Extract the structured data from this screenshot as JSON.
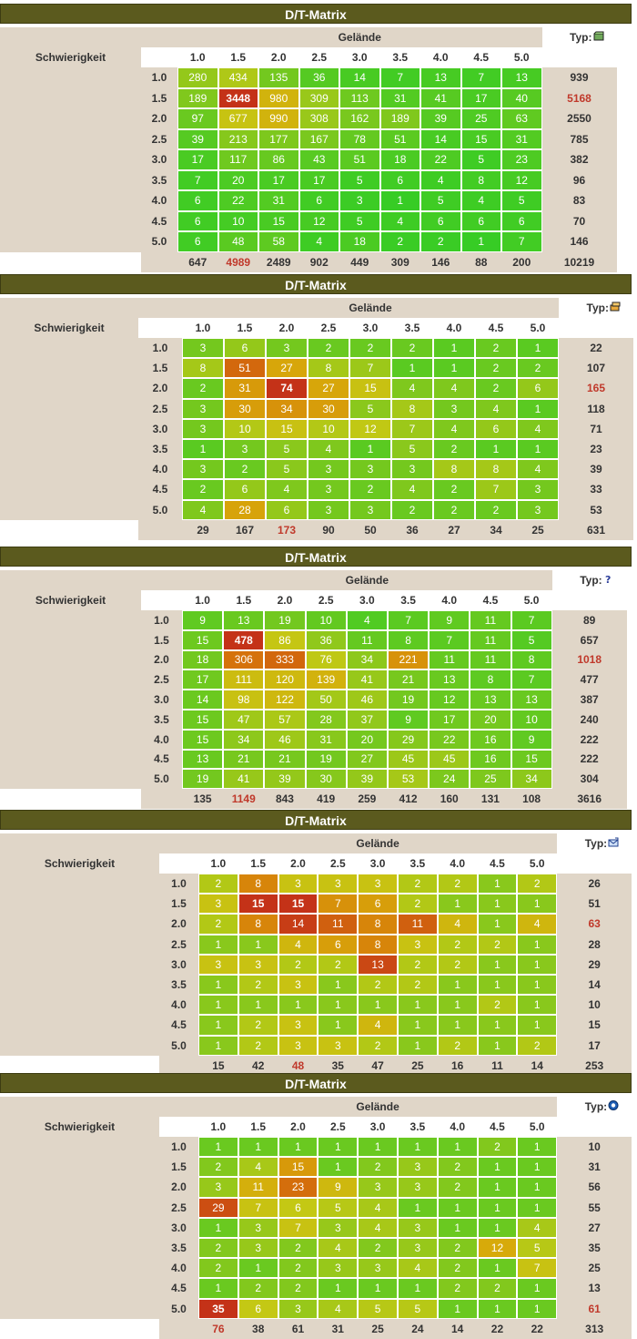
{
  "labels": {
    "title": "D/T-Matrix",
    "terrain": "Gelände",
    "difficulty": "Schwierigkeit",
    "type": "Typ:"
  },
  "levels": [
    "1.0",
    "1.5",
    "2.0",
    "2.5",
    "3.0",
    "3.5",
    "4.0",
    "4.5",
    "5.0"
  ],
  "matrices": [
    {
      "icon": "traditional-cache-icon",
      "rows": [
        [
          280,
          434,
          135,
          36,
          14,
          7,
          13,
          7,
          13
        ],
        [
          189,
          3448,
          980,
          309,
          113,
          31,
          41,
          17,
          40
        ],
        [
          97,
          677,
          990,
          308,
          162,
          189,
          39,
          25,
          63
        ],
        [
          39,
          213,
          177,
          167,
          78,
          51,
          14,
          15,
          31
        ],
        [
          17,
          117,
          86,
          43,
          51,
          18,
          22,
          5,
          23
        ],
        [
          7,
          20,
          17,
          17,
          5,
          6,
          4,
          8,
          12
        ],
        [
          6,
          22,
          31,
          6,
          3,
          1,
          5,
          4,
          5
        ],
        [
          6,
          10,
          15,
          12,
          5,
          4,
          6,
          6,
          6
        ],
        [
          6,
          48,
          58,
          4,
          18,
          2,
          2,
          1,
          7
        ]
      ],
      "row_totals": [
        939,
        5168,
        2550,
        785,
        382,
        96,
        83,
        70,
        146
      ],
      "col_totals": [
        647,
        4989,
        2489,
        902,
        449,
        309,
        146,
        88,
        200
      ],
      "grand_total": 10219
    },
    {
      "icon": "multi-cache-icon",
      "rows": [
        [
          3,
          6,
          3,
          2,
          2,
          2,
          1,
          2,
          1
        ],
        [
          8,
          51,
          27,
          8,
          7,
          1,
          1,
          2,
          2
        ],
        [
          2,
          31,
          74,
          27,
          15,
          4,
          4,
          2,
          6
        ],
        [
          3,
          30,
          34,
          30,
          5,
          8,
          3,
          4,
          1
        ],
        [
          3,
          10,
          15,
          10,
          12,
          7,
          4,
          6,
          4
        ],
        [
          1,
          3,
          5,
          4,
          1,
          5,
          2,
          1,
          1
        ],
        [
          3,
          2,
          5,
          3,
          3,
          3,
          8,
          8,
          4
        ],
        [
          2,
          6,
          4,
          3,
          2,
          4,
          2,
          7,
          3
        ],
        [
          4,
          28,
          6,
          3,
          3,
          2,
          2,
          2,
          3
        ]
      ],
      "row_totals": [
        22,
        107,
        165,
        118,
        71,
        23,
        39,
        33,
        53
      ],
      "col_totals": [
        29,
        167,
        173,
        90,
        50,
        36,
        27,
        34,
        25
      ],
      "grand_total": 631
    },
    {
      "icon": "mystery-cache-icon",
      "rows": [
        [
          9,
          13,
          19,
          10,
          4,
          7,
          9,
          11,
          7
        ],
        [
          15,
          478,
          86,
          36,
          11,
          8,
          7,
          11,
          5
        ],
        [
          18,
          306,
          333,
          76,
          34,
          221,
          11,
          11,
          8
        ],
        [
          17,
          111,
          120,
          139,
          41,
          21,
          13,
          8,
          7
        ],
        [
          14,
          98,
          122,
          50,
          46,
          19,
          12,
          13,
          13
        ],
        [
          15,
          47,
          57,
          28,
          37,
          9,
          17,
          20,
          10
        ],
        [
          15,
          34,
          46,
          31,
          20,
          29,
          22,
          16,
          9
        ],
        [
          13,
          21,
          21,
          19,
          27,
          45,
          45,
          16,
          15
        ],
        [
          19,
          41,
          39,
          30,
          39,
          53,
          24,
          25,
          34
        ]
      ],
      "row_totals": [
        89,
        657,
        1018,
        477,
        387,
        240,
        222,
        222,
        304
      ],
      "col_totals": [
        135,
        1149,
        843,
        419,
        259,
        412,
        160,
        131,
        108
      ],
      "grand_total": 3616
    },
    {
      "icon": "letterbox-cache-icon",
      "rows": [
        [
          2,
          8,
          3,
          3,
          3,
          2,
          2,
          1,
          2
        ],
        [
          3,
          15,
          15,
          7,
          6,
          2,
          1,
          1,
          1
        ],
        [
          2,
          8,
          14,
          11,
          8,
          11,
          4,
          1,
          4
        ],
        [
          1,
          1,
          4,
          6,
          8,
          3,
          2,
          2,
          1
        ],
        [
          3,
          3,
          2,
          2,
          13,
          2,
          2,
          1,
          1
        ],
        [
          1,
          2,
          3,
          1,
          2,
          2,
          1,
          1,
          1
        ],
        [
          1,
          1,
          1,
          1,
          1,
          1,
          1,
          2,
          1
        ],
        [
          1,
          2,
          3,
          1,
          4,
          1,
          1,
          1,
          1
        ],
        [
          1,
          2,
          3,
          3,
          2,
          1,
          2,
          1,
          2
        ]
      ],
      "row_totals": [
        26,
        51,
        63,
        28,
        29,
        14,
        10,
        15,
        17
      ],
      "col_totals": [
        15,
        42,
        48,
        35,
        47,
        25,
        16,
        11,
        14
      ],
      "grand_total": 253
    },
    {
      "icon": "wherigo-cache-icon",
      "rows": [
        [
          1,
          1,
          1,
          1,
          1,
          1,
          1,
          2,
          1
        ],
        [
          2,
          4,
          15,
          1,
          2,
          3,
          2,
          1,
          1
        ],
        [
          3,
          11,
          23,
          9,
          3,
          3,
          2,
          1,
          1
        ],
        [
          29,
          7,
          6,
          5,
          4,
          1,
          1,
          1,
          1
        ],
        [
          1,
          3,
          7,
          3,
          4,
          3,
          1,
          1,
          4
        ],
        [
          2,
          3,
          2,
          4,
          2,
          3,
          2,
          12,
          5
        ],
        [
          2,
          1,
          2,
          3,
          3,
          4,
          2,
          1,
          7
        ],
        [
          1,
          2,
          2,
          1,
          1,
          1,
          2,
          2,
          1
        ],
        [
          35,
          6,
          3,
          4,
          5,
          5,
          1,
          1,
          1
        ]
      ],
      "row_totals": [
        10,
        31,
        56,
        55,
        27,
        35,
        25,
        13,
        61
      ],
      "col_totals": [
        76,
        38,
        61,
        31,
        25,
        24,
        14,
        22,
        22
      ],
      "grand_total": 313
    }
  ]
}
